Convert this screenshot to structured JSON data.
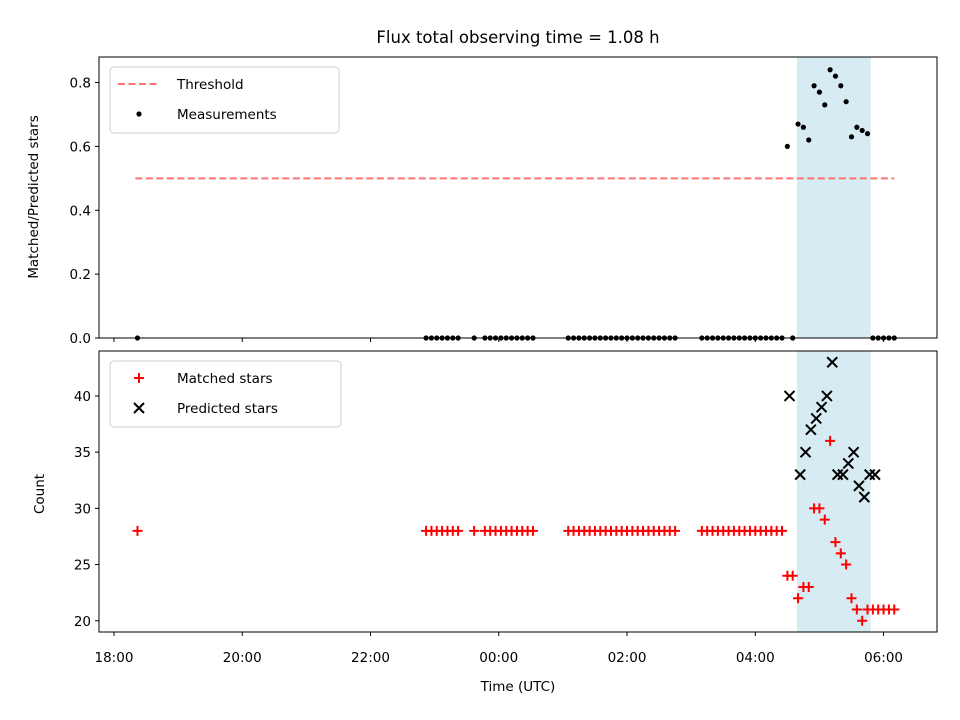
{
  "title": "Flux total observing time = 1.08 h",
  "colors": {
    "threshold": "#ff7373",
    "measurement": "#000000",
    "matched": "#ff0000",
    "predicted": "#000000",
    "span": "#add8e6"
  },
  "chart_data": [
    {
      "type": "scatter",
      "ylabel": "Matched/Predicted stars",
      "xlim": [
        "17:46",
        "06:50"
      ],
      "ylim": [
        0,
        0.88
      ],
      "yticks": [
        "0.0",
        "0.2",
        "0.4",
        "0.6",
        "0.8"
      ],
      "shaded_span": [
        "04:39",
        "05:48"
      ],
      "legend": {
        "position": "upper left",
        "entries": [
          "Threshold",
          "Measurements"
        ]
      },
      "series": [
        {
          "name": "Threshold",
          "style": "dashed-line",
          "x": [
            "18:20",
            "06:10"
          ],
          "y": [
            0.5,
            0.5
          ]
        },
        {
          "name": "Measurements",
          "style": "dot",
          "x": [
            "18:22",
            "22:52",
            "22:57",
            "23:02",
            "23:07",
            "23:12",
            "23:17",
            "23:22",
            "23:37",
            "23:47",
            "23:52",
            "23:57",
            "00:02",
            "00:07",
            "00:12",
            "00:17",
            "00:22",
            "00:27",
            "00:32",
            "01:05",
            "01:10",
            "01:15",
            "01:20",
            "01:25",
            "01:30",
            "01:35",
            "01:40",
            "01:45",
            "01:50",
            "01:55",
            "02:00",
            "02:05",
            "02:10",
            "02:15",
            "02:20",
            "02:25",
            "02:30",
            "02:35",
            "02:40",
            "02:45",
            "03:10",
            "03:15",
            "03:20",
            "03:25",
            "03:30",
            "03:35",
            "03:40",
            "03:45",
            "03:50",
            "03:55",
            "04:00",
            "04:05",
            "04:10",
            "04:15",
            "04:20",
            "04:25",
            "04:30",
            "04:35",
            "04:40",
            "04:45",
            "04:50",
            "04:55",
            "05:00",
            "05:05",
            "05:10",
            "05:15",
            "05:20",
            "05:25",
            "05:30",
            "05:35",
            "05:40",
            "05:45",
            "05:50",
            "05:55",
            "06:00",
            "06:05",
            "06:10"
          ],
          "y": [
            0,
            0,
            0,
            0,
            0,
            0,
            0,
            0,
            0,
            0,
            0,
            0,
            0,
            0,
            0,
            0,
            0,
            0,
            0,
            0,
            0,
            0,
            0,
            0,
            0,
            0,
            0,
            0,
            0,
            0,
            0,
            0,
            0,
            0,
            0,
            0,
            0,
            0,
            0,
            0,
            0,
            0,
            0,
            0,
            0,
            0,
            0,
            0,
            0,
            0,
            0,
            0,
            0,
            0,
            0,
            0,
            0.6,
            0,
            0.67,
            0.66,
            0.62,
            0.79,
            0.77,
            0.73,
            0.84,
            0.82,
            0.79,
            0.74,
            0.63,
            0.66,
            0.65,
            0.64,
            0,
            0,
            0,
            0,
            0
          ]
        }
      ]
    },
    {
      "type": "scatter",
      "ylabel": "Count",
      "xlabel": "Time (UTC)",
      "xlim": [
        "17:46",
        "06:50"
      ],
      "xticks": [
        "18:00",
        "20:00",
        "22:00",
        "00:00",
        "02:00",
        "04:00",
        "06:00"
      ],
      "ylim": [
        19,
        44
      ],
      "yticks": [
        "20",
        "25",
        "30",
        "35",
        "40"
      ],
      "shaded_span": [
        "04:39",
        "05:48"
      ],
      "legend": {
        "position": "upper left",
        "entries": [
          "Matched stars",
          "Predicted stars"
        ]
      },
      "series": [
        {
          "name": "Matched stars",
          "marker": "+",
          "x": [
            "18:22",
            "22:52",
            "22:57",
            "23:02",
            "23:07",
            "23:12",
            "23:17",
            "23:22",
            "23:37",
            "23:47",
            "23:52",
            "23:57",
            "00:02",
            "00:07",
            "00:12",
            "00:17",
            "00:22",
            "00:27",
            "00:32",
            "01:05",
            "01:10",
            "01:15",
            "01:20",
            "01:25",
            "01:30",
            "01:35",
            "01:40",
            "01:45",
            "01:50",
            "01:55",
            "02:00",
            "02:05",
            "02:10",
            "02:15",
            "02:20",
            "02:25",
            "02:30",
            "02:35",
            "02:40",
            "02:45",
            "03:10",
            "03:15",
            "03:20",
            "03:25",
            "03:30",
            "03:35",
            "03:40",
            "03:45",
            "03:50",
            "03:55",
            "04:00",
            "04:05",
            "04:10",
            "04:15",
            "04:20",
            "04:25",
            "04:30",
            "04:35",
            "04:40",
            "04:45",
            "04:50",
            "04:55",
            "05:00",
            "05:05",
            "05:10",
            "05:15",
            "05:20",
            "05:25",
            "05:30",
            "05:35",
            "05:40",
            "05:45",
            "05:50",
            "05:55",
            "06:00",
            "06:05",
            "06:10"
          ],
          "y": [
            28,
            28,
            28,
            28,
            28,
            28,
            28,
            28,
            28,
            28,
            28,
            28,
            28,
            28,
            28,
            28,
            28,
            28,
            28,
            28,
            28,
            28,
            28,
            28,
            28,
            28,
            28,
            28,
            28,
            28,
            28,
            28,
            28,
            28,
            28,
            28,
            28,
            28,
            28,
            28,
            28,
            28,
            28,
            28,
            28,
            28,
            28,
            28,
            28,
            28,
            28,
            28,
            28,
            28,
            28,
            28,
            24,
            24,
            22,
            23,
            23,
            30,
            30,
            29,
            36,
            27,
            26,
            25,
            22,
            21,
            20,
            21,
            21,
            21,
            21,
            21,
            21
          ]
        },
        {
          "name": "Predicted stars",
          "marker": "x",
          "x": [
            "04:32",
            "04:42",
            "04:47",
            "04:52",
            "04:57",
            "05:02",
            "05:07",
            "05:12",
            "05:17",
            "05:22",
            "05:27",
            "05:32",
            "05:37",
            "05:42",
            "05:47",
            "05:52"
          ],
          "y": [
            40,
            33,
            35,
            37,
            38,
            39,
            40,
            43,
            33,
            33,
            34,
            35,
            32,
            31,
            33,
            33
          ]
        }
      ]
    }
  ]
}
